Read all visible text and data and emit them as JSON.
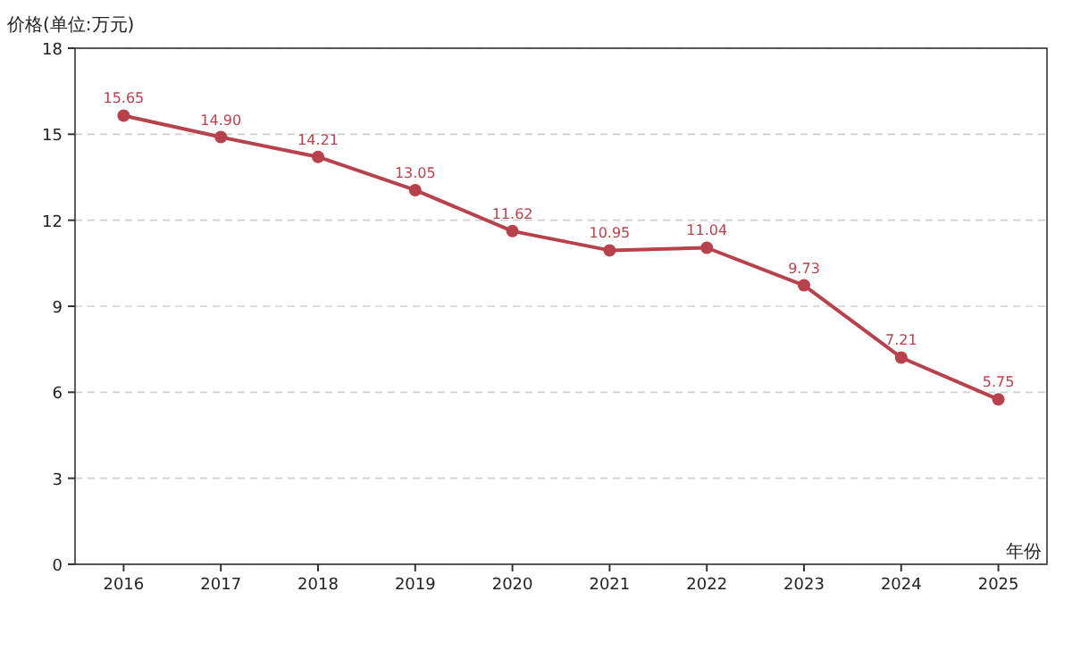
{
  "chart_data": {
    "type": "line",
    "ylabel": "价格(单位:万元)",
    "xlabel": "年份",
    "categories": [
      "2016",
      "2017",
      "2018",
      "2019",
      "2020",
      "2021",
      "2022",
      "2023",
      "2024",
      "2025"
    ],
    "series": [
      {
        "color": "#b8424c",
        "values": [
          15.65,
          14.9,
          14.21,
          13.05,
          11.62,
          10.95,
          11.04,
          9.73,
          7.21,
          5.75
        ]
      }
    ],
    "value_labels": [
      "15.65",
      "14.90",
      "14.21",
      "13.05",
      "11.62",
      "10.95",
      "11.04",
      "9.73",
      "7.21",
      "5.75"
    ],
    "ylim": [
      0,
      18
    ],
    "yticks": [
      0,
      3,
      6,
      9,
      12,
      15,
      18
    ],
    "grid": "y",
    "marker": "circle"
  }
}
